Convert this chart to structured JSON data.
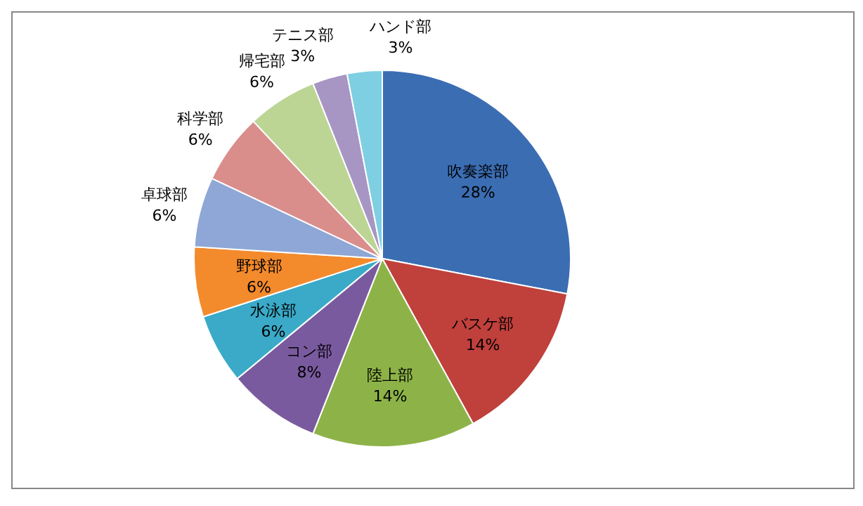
{
  "chart_data": {
    "type": "pie",
    "categories": [
      "吹奏楽部",
      "バスケ部",
      "陸上部",
      "コン部",
      "水泳部",
      "野球部",
      "卓球部",
      "科学部",
      "帰宅部",
      "テニス部",
      "ハンド部"
    ],
    "values": [
      28,
      14,
      14,
      8,
      6,
      6,
      6,
      6,
      6,
      3,
      3
    ],
    "value_labels": [
      "28%",
      "14%",
      "14%",
      "8%",
      "6%",
      "6%",
      "6%",
      "6%",
      "6%",
      "3%",
      "3%"
    ],
    "colors": [
      "#3b6db3",
      "#c0403c",
      "#8db348",
      "#7a5a9f",
      "#3aaac8",
      "#f38a2c",
      "#8ea7d6",
      "#da8e8c",
      "#bcd595",
      "#a796c4",
      "#7fcfe2"
    ],
    "legend": false
  }
}
